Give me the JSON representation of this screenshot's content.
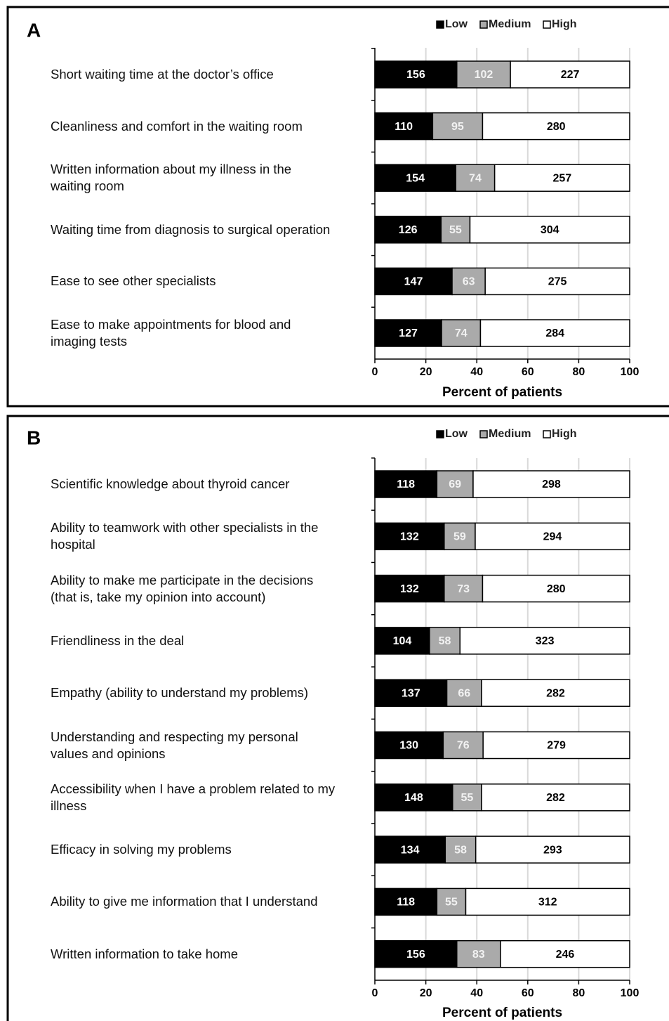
{
  "chart_data": [
    {
      "type": "bar",
      "orientation": "horizontal",
      "stack": "percent",
      "title": "A",
      "xlabel": "Percent of patients",
      "legend": "top-right",
      "grid": true,
      "xlim": [
        0,
        100
      ],
      "xticks": [
        0,
        20,
        40,
        60,
        80,
        100
      ],
      "categories": [
        "Short waiting time at the doctor’s office",
        "Cleanliness and comfort in the waiting room",
        "Written information about my illness in the\nwaiting room",
        "Waiting time from diagnosis to surgical operation",
        "Ease to see other specialists",
        "Ease to make appointments for blood and\nimaging tests"
      ],
      "series": [
        {
          "name": "Low",
          "color": "#000000",
          "values": [
            156,
            110,
            154,
            126,
            147,
            127
          ]
        },
        {
          "name": "Medium",
          "color": "#aaaaaa",
          "values": [
            102,
            95,
            74,
            55,
            63,
            74
          ]
        },
        {
          "name": "High",
          "color": "#ffffff",
          "values": [
            227,
            280,
            257,
            304,
            275,
            284
          ]
        }
      ]
    },
    {
      "type": "bar",
      "orientation": "horizontal",
      "stack": "percent",
      "title": "B",
      "xlabel": "Percent of patients",
      "legend": "top-right",
      "grid": true,
      "xlim": [
        0,
        100
      ],
      "xticks": [
        0,
        20,
        40,
        60,
        80,
        100
      ],
      "categories": [
        "Scientific knowledge about thyroid cancer",
        "Ability to teamwork with other specialists in the\nhospital",
        "Ability to make me participate in the decisions\n(that is, take my opinion into account)",
        "Friendliness in the deal",
        "Empathy (ability to understand my problems)",
        "Understanding and respecting my personal\nvalues and opinions",
        "Accessibility when I have a problem related to my\nillness",
        "Efficacy in solving my problems",
        "Ability to give me information that I understand",
        "Written information to take home"
      ],
      "series": [
        {
          "name": "Low",
          "color": "#000000",
          "values": [
            118,
            132,
            132,
            104,
            137,
            130,
            148,
            134,
            118,
            156
          ]
        },
        {
          "name": "Medium",
          "color": "#aaaaaa",
          "values": [
            69,
            59,
            73,
            58,
            66,
            76,
            55,
            58,
            55,
            83
          ]
        },
        {
          "name": "High",
          "color": "#ffffff",
          "values": [
            298,
            294,
            280,
            323,
            282,
            279,
            282,
            293,
            312,
            246
          ]
        }
      ]
    }
  ]
}
